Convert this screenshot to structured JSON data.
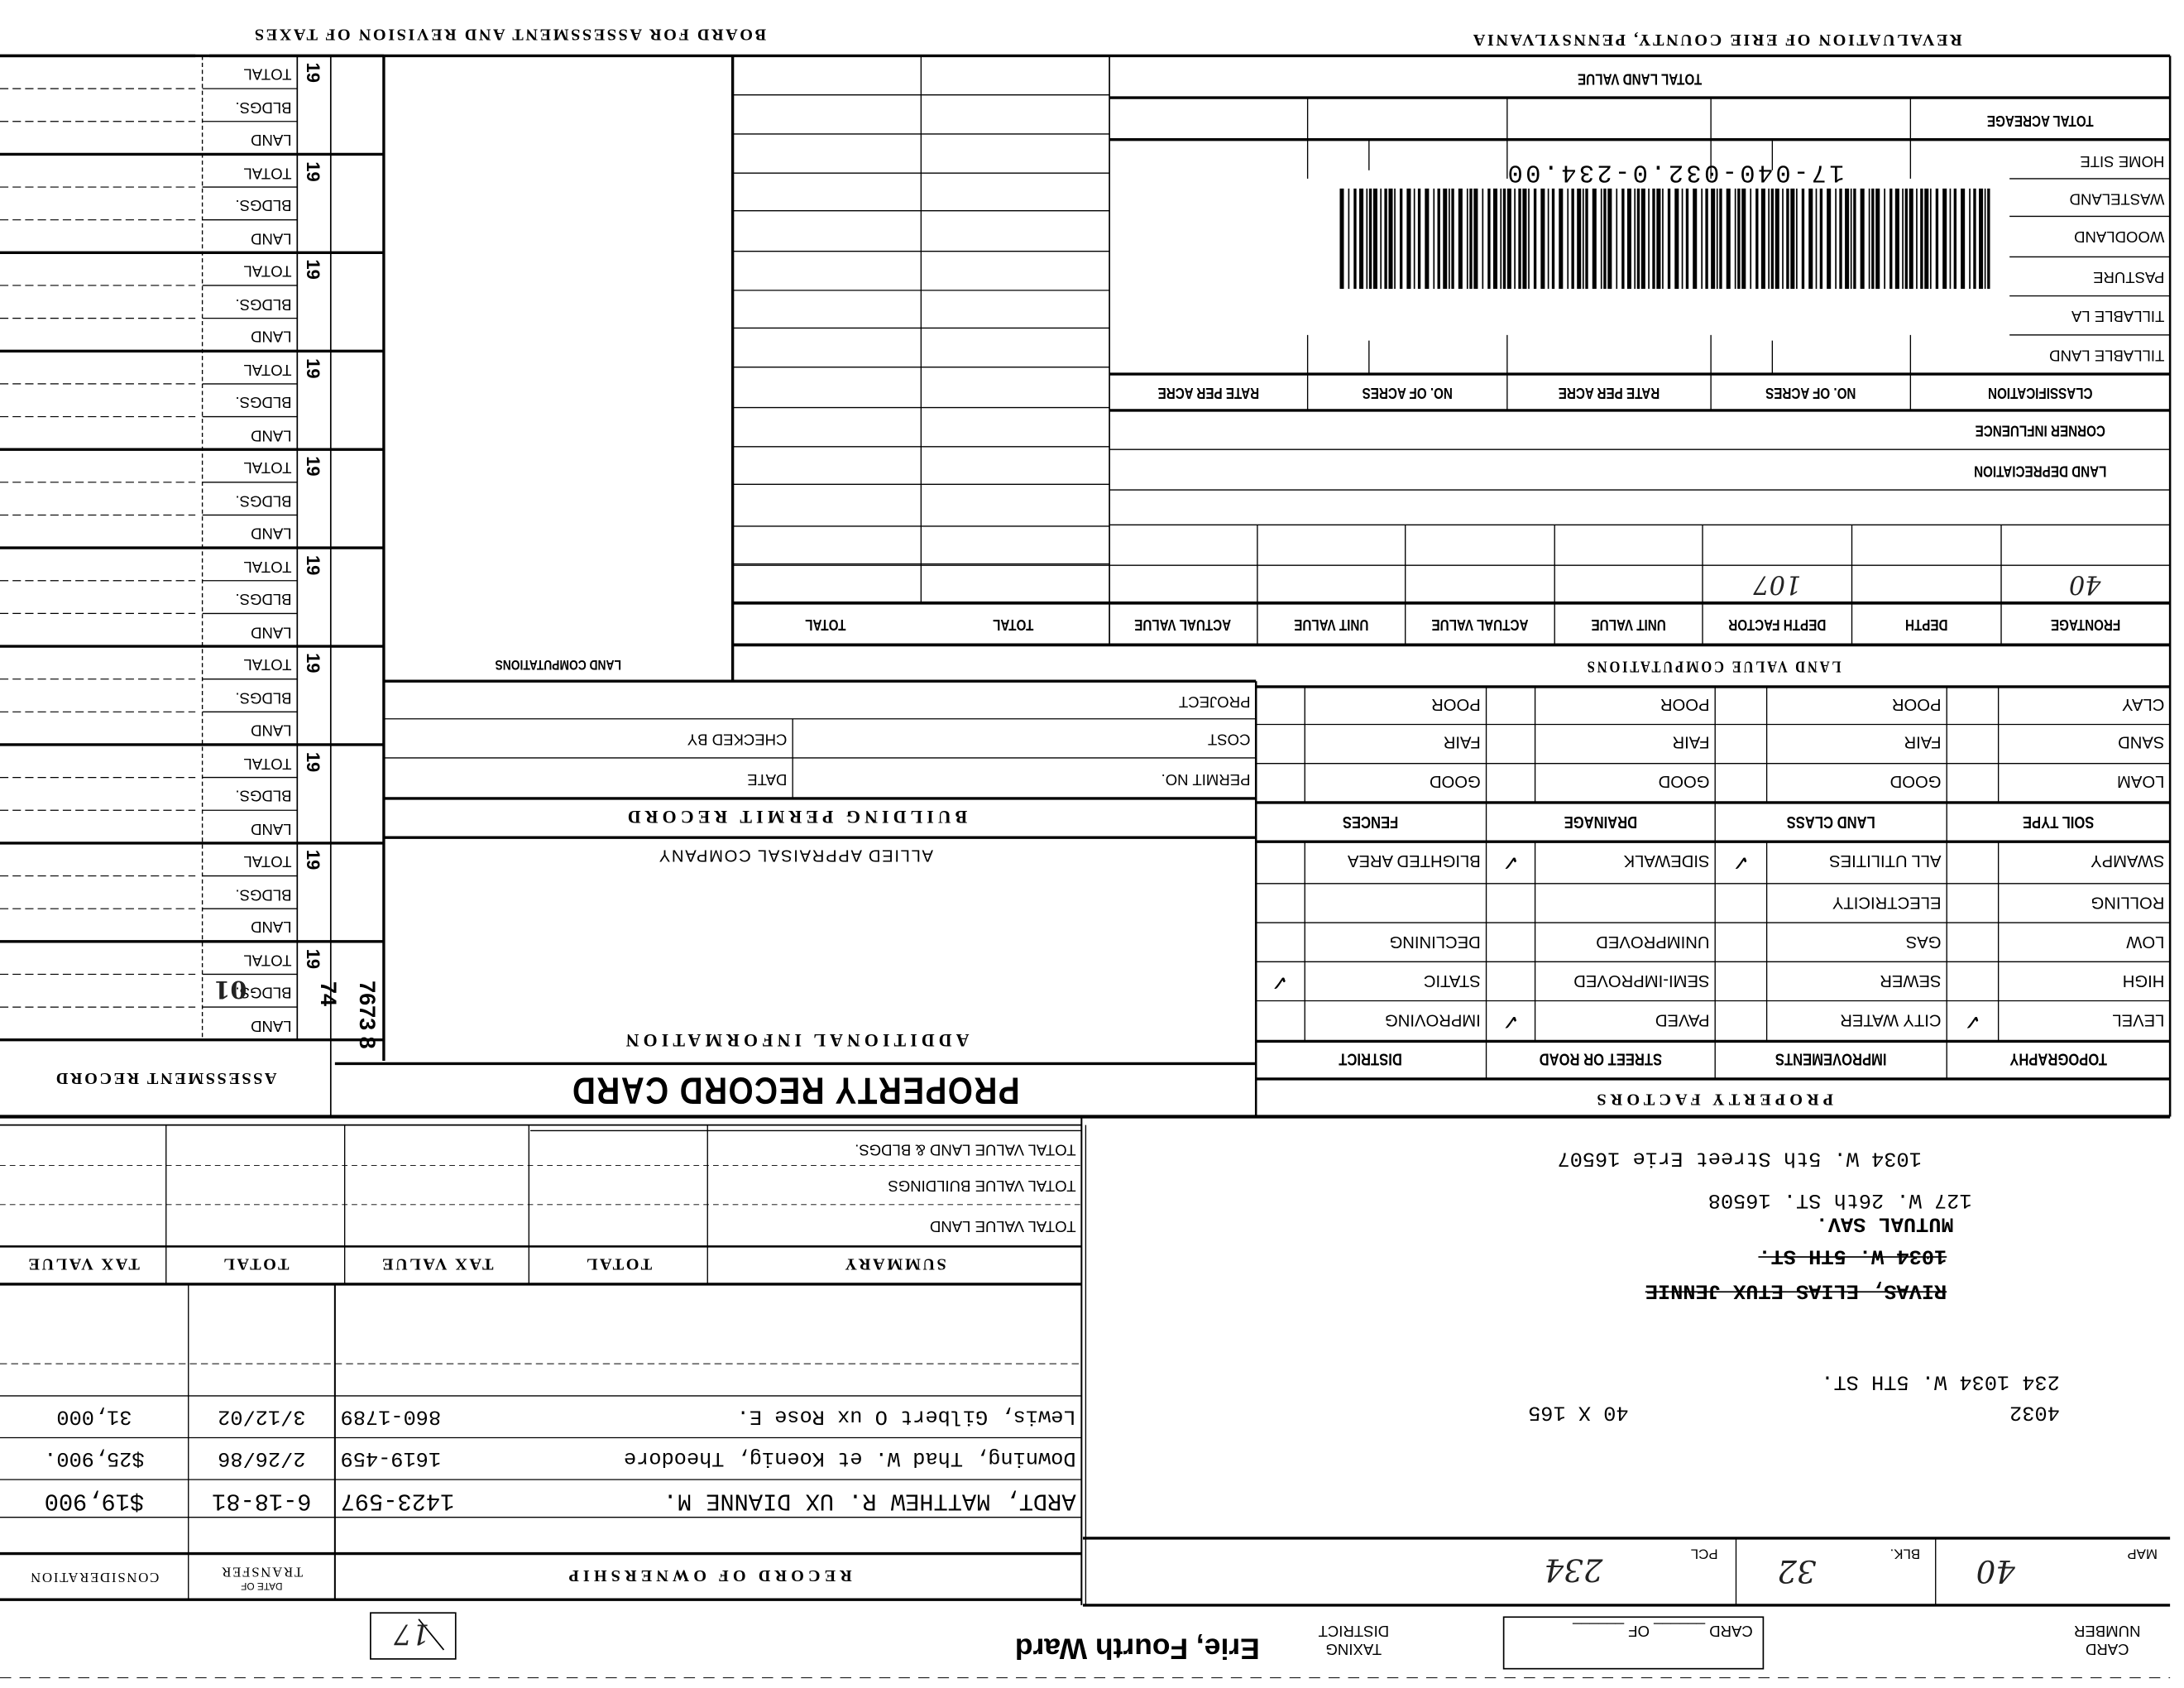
{
  "header": {
    "board": "BOARD FOR ASSESSMENT AND REVISION OF TAXES",
    "revaluation": "REVALUATION OF ERIE COUNTY, PENNSYLVANIA"
  },
  "assessment_record": {
    "title": "ASSESSMENT RECORD",
    "row_labels": [
      "TOTAL",
      "BLDGS.",
      "LAND"
    ],
    "years": [
      "19",
      "19",
      "19",
      "19",
      "19",
      "19",
      "19",
      "19",
      "19",
      "19"
    ],
    "handwritten_bldgs": "01",
    "stamp_a": "74",
    "stamp_b": "7673 8"
  },
  "land_computations": "LAND COMPUTATIONS",
  "acreage": {
    "total_land_value": "TOTAL LAND VALUE",
    "total_acreage": "TOTAL ACREAGE",
    "classes": [
      "HOME SITE",
      "WASTELAND",
      "WOODLAND",
      "PASTURE",
      "TILLABLE LA",
      "TILLABLE LAND"
    ],
    "headers": [
      "RATE PER ACRE",
      "NO. OF ACRES",
      "RATE PER ACRE",
      "NO. OF ACRES",
      "CLASSIFICATION"
    ],
    "corner_influence": "CORNER INFLUENCE",
    "land_depreciation": "LAND DEPRECIATION"
  },
  "barcode": {
    "number": "17-040-032.0-234.00"
  },
  "land_value_computations": {
    "title": "LAND VALUE COMPUTATIONS",
    "headers": [
      "TOTAL",
      "TOTAL",
      "ACTUAL VALUE",
      "UNIT VALUE",
      "ACTUAL VALUE",
      "UNIT VALUE",
      "DEPTH FACTOR",
      "DEPTH",
      "FRONTAGE"
    ],
    "frontage": "40",
    "depth_factor": "107"
  },
  "building_permit": {
    "title": "BUILDING PERMIT RECORD",
    "project": "PROJECT",
    "cost": "COST",
    "permit_no": "PERMIT NO.",
    "checked_by": "CHECKED BY",
    "date": "DATE"
  },
  "additional_info": {
    "company": "ALLIED APPRAISAL COMPANY",
    "title": "ADDITIONAL INFORMATION"
  },
  "card_title": "PROPERTY RECORD CARD",
  "soil": {
    "headers": [
      "SOIL TYPE",
      "LAND CLASS",
      "DRAINAGE",
      "FENCES"
    ],
    "rows": [
      [
        "CLAY",
        "POOR",
        "POOR",
        "POOR"
      ],
      [
        "SAND",
        "FAIR",
        "FAIR",
        "FAIR"
      ],
      [
        "LOAM",
        "GOOD",
        "GOOD",
        "GOOD"
      ]
    ]
  },
  "property_factors": {
    "title": "PROPERTY FACTORS",
    "headers": [
      "TOPOGRAPHY",
      "IMPROVEMENTS",
      "STREET OR ROAD",
      "DISTRICT"
    ],
    "rows": [
      [
        "SWAMPY",
        "ALL UTILITIES",
        "SIDEWALK",
        "BLIGHTED AREA"
      ],
      [
        "ROLLING",
        "ELECTRICITY",
        "",
        ""
      ],
      [
        "LOW",
        "GAS",
        "UNIMPROVED",
        "DECLINING"
      ],
      [
        "HIGH",
        "SEWER",
        "SEMI-IMPROVED",
        "STATIC"
      ],
      [
        "LEVEL",
        "CITY WATER",
        "PAVED",
        "IMPROVING"
      ]
    ],
    "checked": [
      [
        false,
        true,
        true,
        false
      ],
      [
        false,
        false,
        false,
        false
      ],
      [
        false,
        false,
        false,
        false
      ],
      [
        false,
        false,
        false,
        true
      ],
      [
        true,
        false,
        true,
        false
      ]
    ],
    "check_glyph": "✓"
  },
  "summary": {
    "rows": [
      "TOTAL VALUE LAND & BLDGS.",
      "TOTAL VALUE BUILDINGS",
      "TOTAL VALUE LAND"
    ],
    "headers": [
      "TAX VALUE",
      "TOTAL",
      "TAX VALUE",
      "TOTAL",
      "SUMMARY"
    ]
  },
  "ownership": {
    "title": "RECORD OF OWNERSHIP",
    "date_header_small": "DATE OF",
    "date_header": "TRANSFER",
    "consideration_header": "CONSIDERATION",
    "rows": [
      {
        "name": "Lewis, Gilbert O ux Rose E.",
        "deed": "860-1789",
        "date": "3/12/02",
        "consideration": "31,000"
      },
      {
        "name": "Downing, Thad W. et Koenig, Theodore",
        "deed": "1619-459",
        "date": "2/26/86",
        "consideration": "$25,900."
      },
      {
        "name": "ARDT, MATTHEW R. UX DIANNE M.",
        "deed": "1423-597",
        "date": "6-18-81",
        "consideration": "$19,900"
      }
    ]
  },
  "parcel": {
    "current_address": "1034 W. 5th Street  Erie 16507",
    "mail_address": "127 W. 26th ST.  16508",
    "mail_name": "MUTUAL SAV.",
    "old_address": "1034 W. 5TH ST.",
    "old_owner": "RIVAS, ELIAS ETUX JENNIE",
    "location": "234   1034 W. 5TH ST.",
    "code": "4032",
    "lot_size": "40 X 165",
    "map_label": "MAP",
    "map": "40",
    "blk_label": "BLK.",
    "blk": "32",
    "pcl_label": "PCL",
    "pcl": "234"
  },
  "footer": {
    "card_number_1": "CARD",
    "card_number_2": "NUMBER",
    "card_of": "CARD ______ OF ______",
    "taxing_1": "TAXING",
    "taxing_2": "DISTRICT",
    "district": "Erie, Fourth Ward",
    "box_number": "17"
  }
}
